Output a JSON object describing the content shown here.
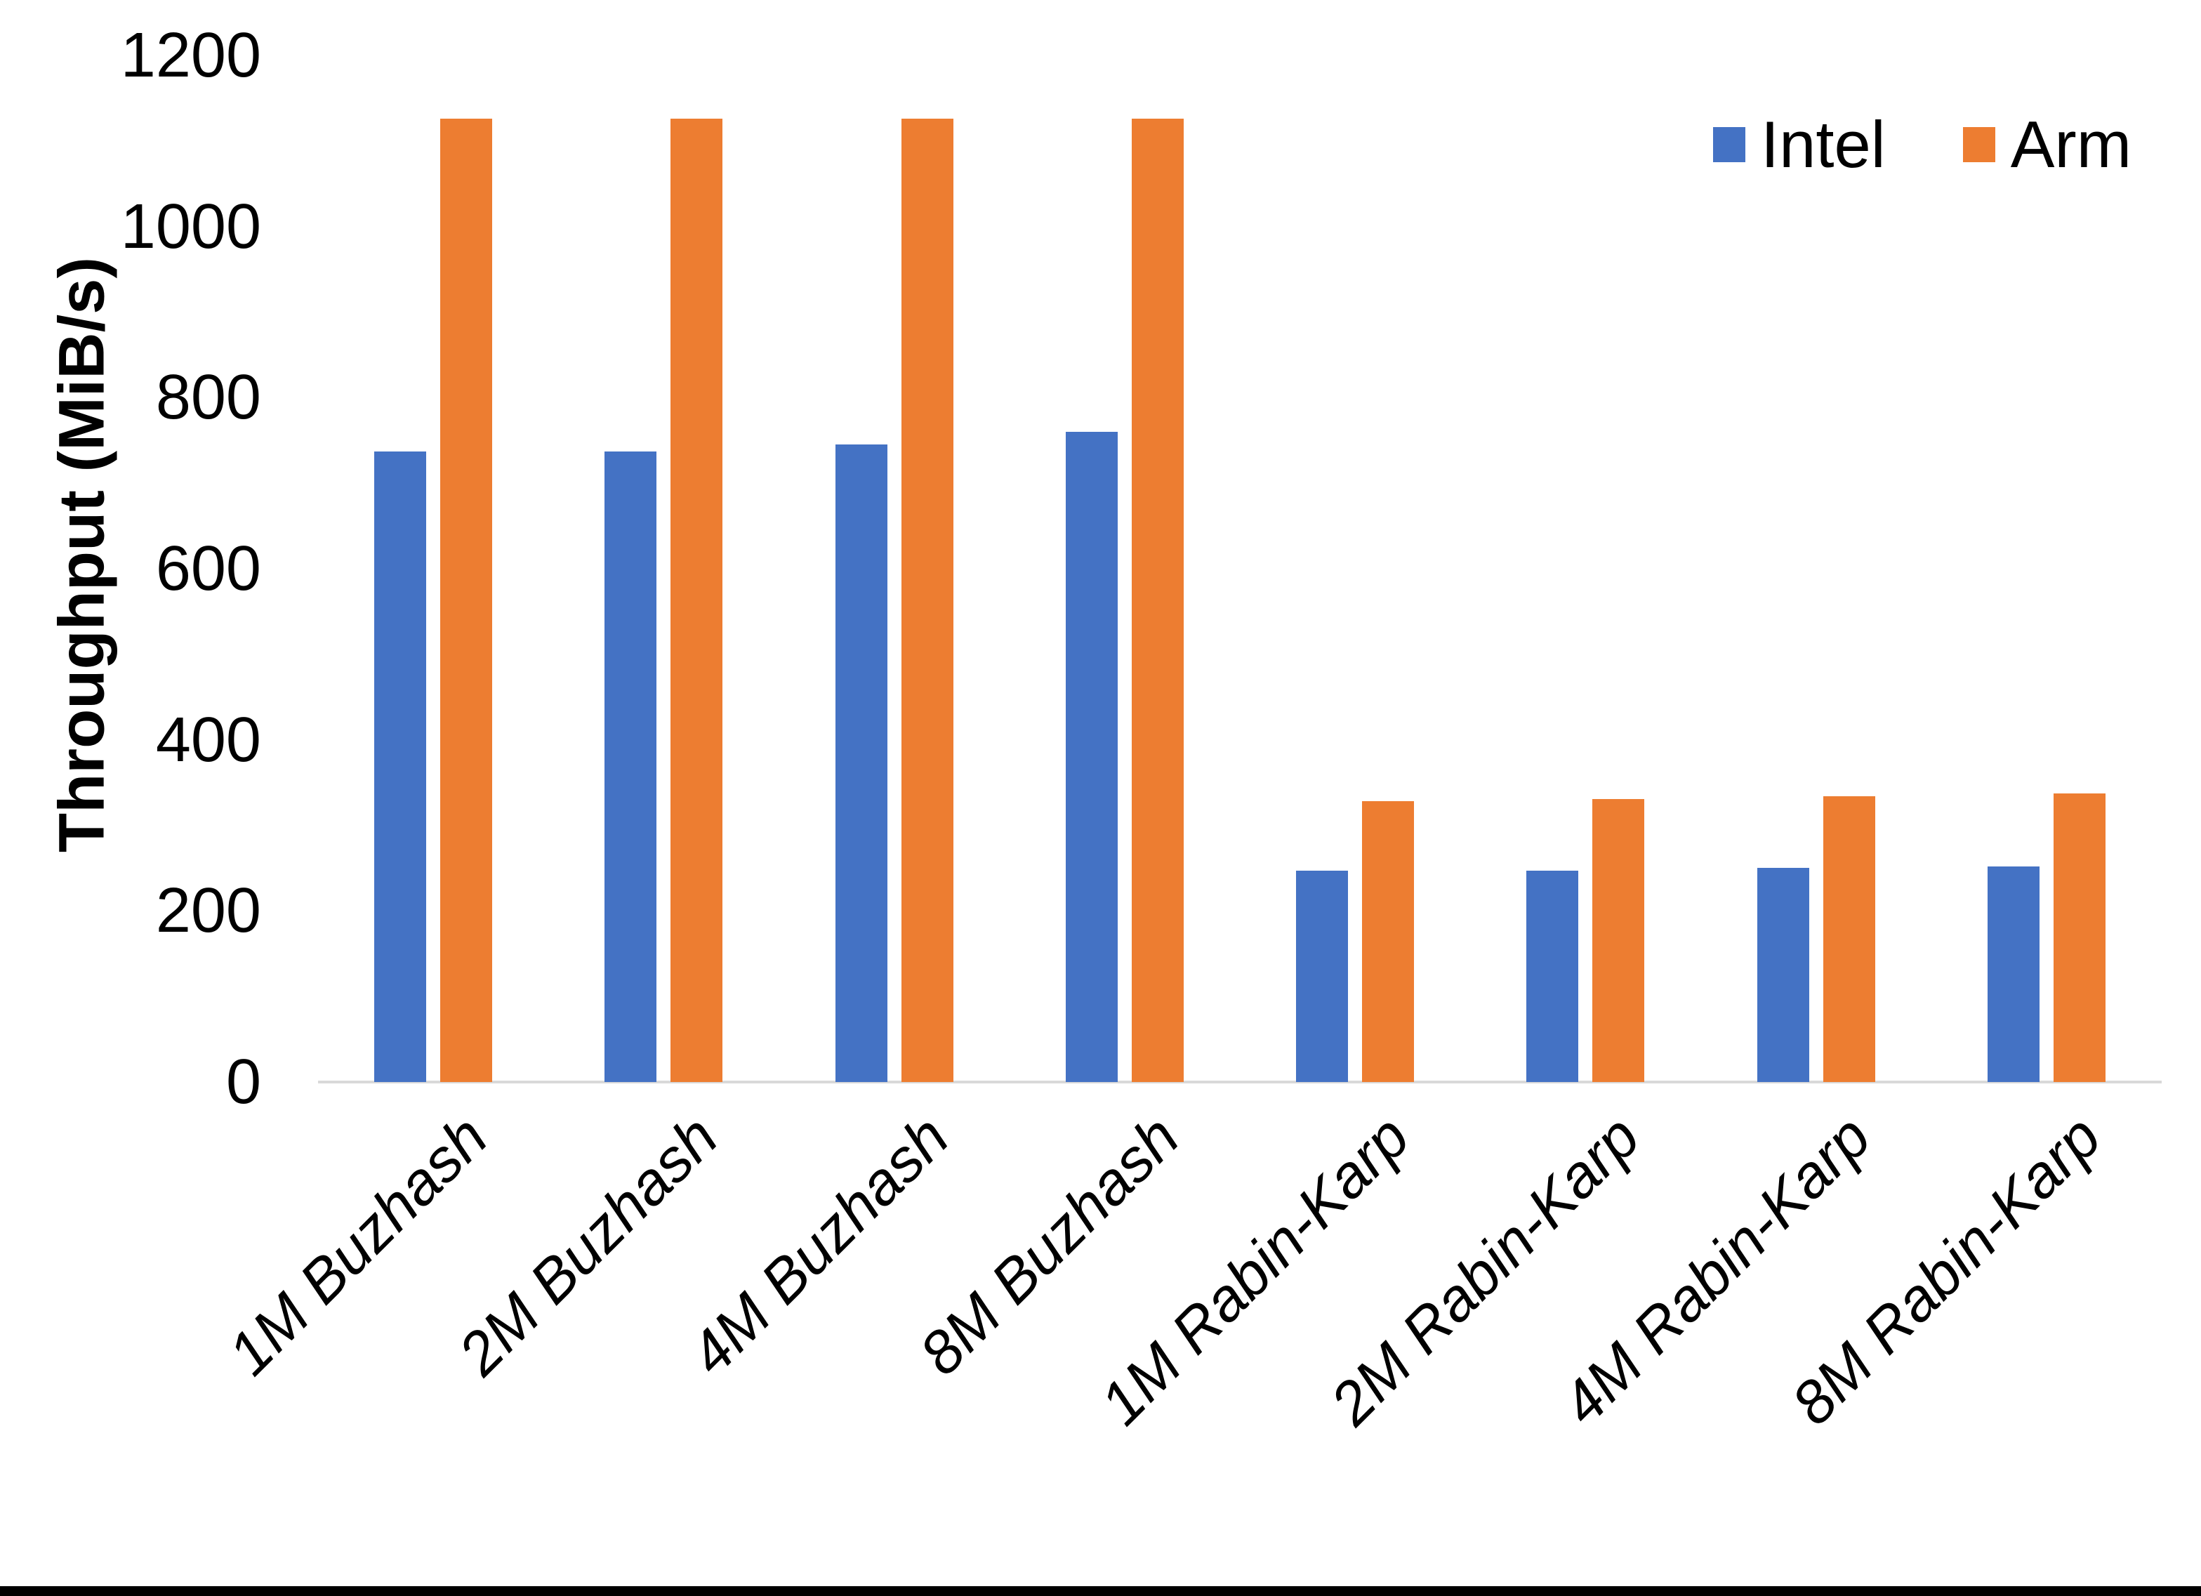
{
  "chart_data": {
    "type": "bar",
    "title": "",
    "xlabel": "",
    "ylabel": "Throughput (MiB/s)",
    "ylim": [
      0,
      1200
    ],
    "yticks": [
      0,
      200,
      400,
      600,
      800,
      1000,
      1200
    ],
    "grid": false,
    "legend_position": "top-right",
    "categories": [
      "1M Buzhash",
      "2M Buzhash",
      "4M Buzhash",
      "8M Buzhash",
      "1M Rabin-Karp",
      "2M Rabin-Karp",
      "4M Rabin-Karp",
      "8M Rabin-Karp"
    ],
    "series": [
      {
        "name": "Intel",
        "color": "#4472C4",
        "values": [
          737,
          737,
          745,
          760,
          247,
          247,
          250,
          252
        ]
      },
      {
        "name": "Arm",
        "color": "#ED7D31",
        "values": [
          1126,
          1126,
          1126,
          1126,
          328,
          331,
          334,
          337
        ]
      }
    ]
  },
  "legend": {
    "items": [
      {
        "label": "Intel",
        "color": "#4472C4"
      },
      {
        "label": "Arm",
        "color": "#ED7D31"
      }
    ]
  },
  "colors": {
    "intel": "#4472C4",
    "arm": "#ED7D31",
    "axis_line": "#D9D9D9",
    "text": "#000000",
    "background": "#FFFFFF",
    "bottom_border": "#000000"
  }
}
